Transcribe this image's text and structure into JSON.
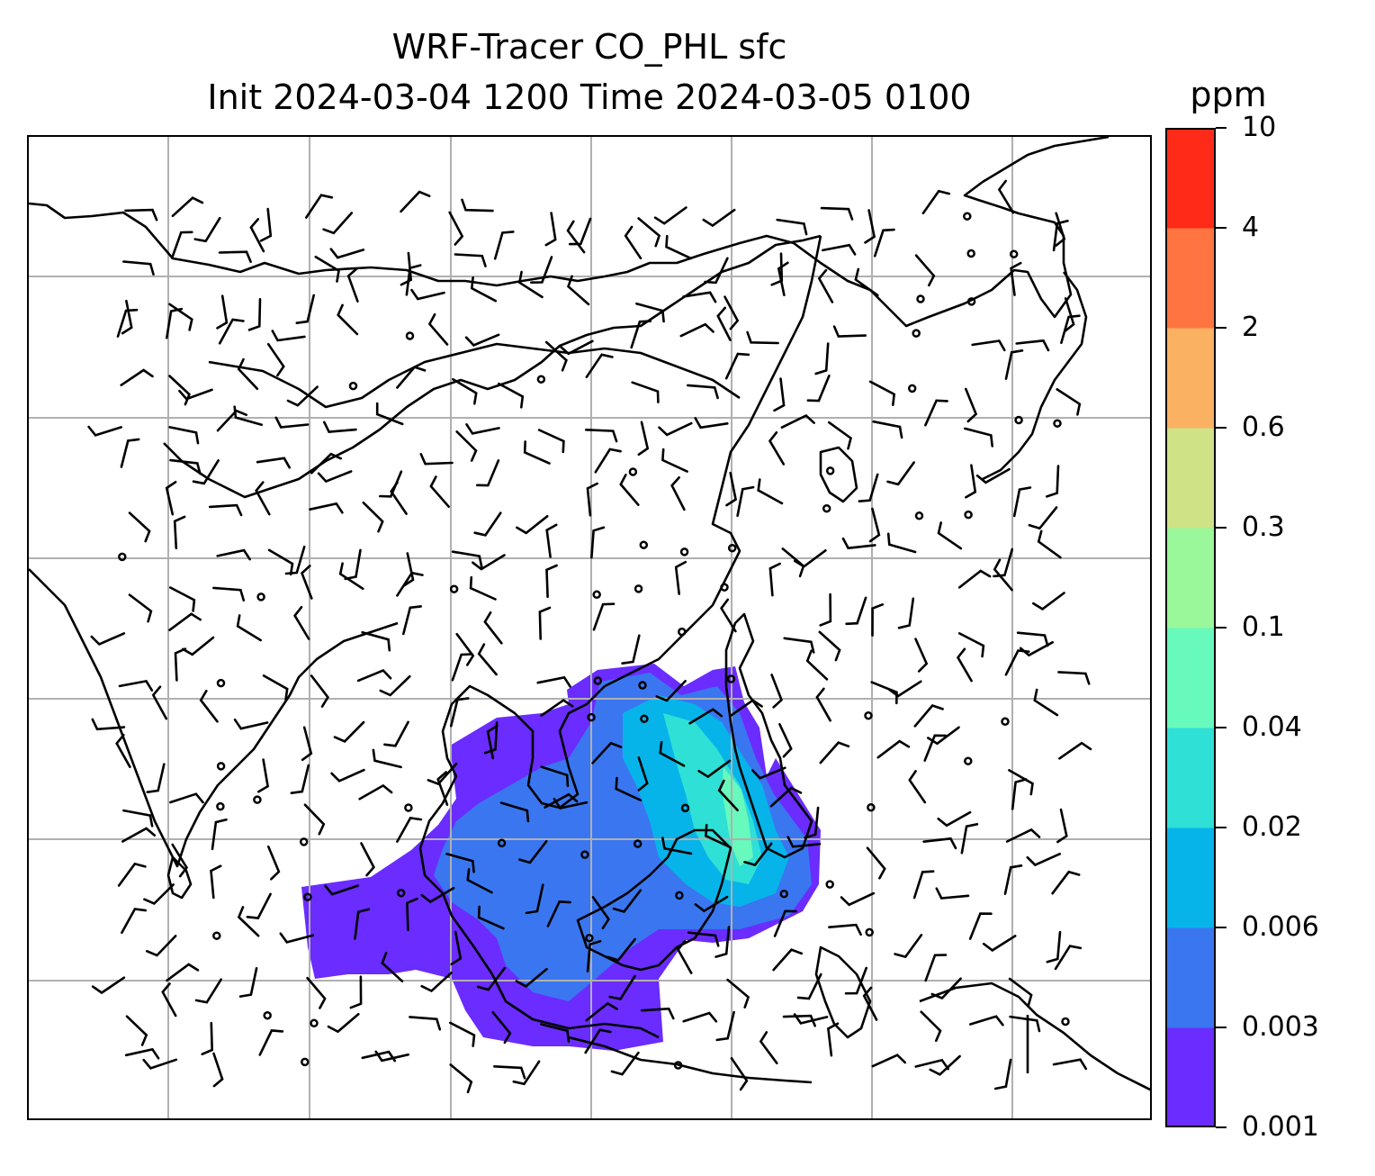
{
  "title": {
    "line1": "WRF-Tracer CO_PHL sfc",
    "line2": "Init 2024-03-04 1200 Time 2024-03-05 0100"
  },
  "colorbar": {
    "unit": "ppm",
    "levels": [
      {
        "label": "0.001",
        "color": "#6a2cff"
      },
      {
        "label": "0.003",
        "color": "#3a76f0"
      },
      {
        "label": "0.006",
        "color": "#06b4ea"
      },
      {
        "label": "0.02",
        "color": "#2ee0d6"
      },
      {
        "label": "0.04",
        "color": "#68f9bc"
      },
      {
        "label": "0.1",
        "color": "#9af79a"
      },
      {
        "label": "0.3",
        "color": "#cfe286"
      },
      {
        "label": "0.6",
        "color": "#fbb162"
      },
      {
        "label": "2",
        "color": "#ff7440"
      },
      {
        "label": "4",
        "color": "#ff2a18"
      },
      {
        "label": "10",
        "color": null
      }
    ]
  },
  "map": {
    "gridlines": true,
    "gridline_color": "#b0b0b0",
    "coastline_color": "#000000",
    "wind_barbs": true
  }
}
